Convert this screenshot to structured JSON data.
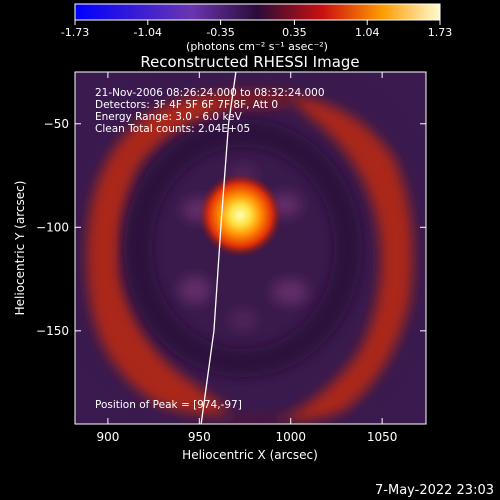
{
  "chart_data": {
    "type": "heatmap",
    "title": "Reconstructed RHESSI Image",
    "xlabel": "Heliocentric X (arcsec)",
    "ylabel": "Heliocentric Y (arcsec)",
    "xlim": [
      882,
      1074
    ],
    "ylim": [
      -195,
      -25
    ],
    "xticks": [
      900,
      950,
      1000,
      1050
    ],
    "yticks": [
      -50,
      -100,
      -150
    ],
    "colorbar": {
      "range": [
        -1.73,
        1.73
      ],
      "ticks": [
        "-1.73",
        "-1.04",
        "-0.35",
        "0.35",
        "1.04",
        "1.73"
      ],
      "units_label": "(photons cm⁻² s⁻¹ asec⁻²)"
    },
    "annotations": [
      "21-Nov-2006 08:26:24.000 to 08:32:24.000",
      "Detectors: 3F 4F 5F 6F 7F 8F, Att 0",
      "Energy Range: 3.0 - 6.0 keV",
      "Clean    Total counts: 2.04E+05"
    ],
    "peak": {
      "label": "Position of Peak = [974,-97]",
      "x": 974,
      "y": -97
    },
    "peak_value": 1.73,
    "limb_curve": [
      [
        951,
        -195
      ],
      [
        958,
        -150
      ],
      [
        962,
        -97
      ],
      [
        966,
        -50
      ],
      [
        970,
        -25
      ]
    ],
    "grid": false
  },
  "footer": {
    "date": "7-May-2022 23:03"
  }
}
